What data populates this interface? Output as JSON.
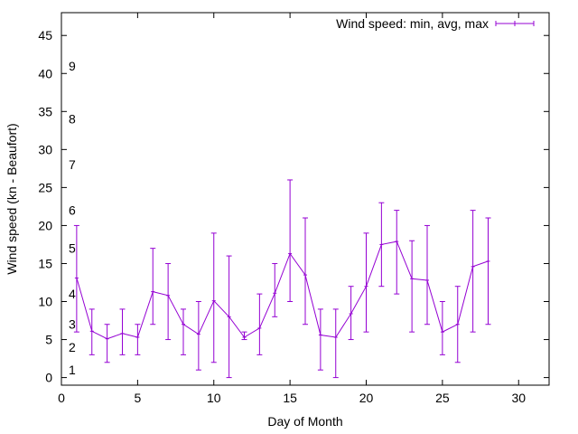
{
  "chart_data": {
    "type": "line",
    "title": "",
    "xlabel": "Day of Month",
    "ylabel": "Wind speed (kn - Beaufort)",
    "xlim": [
      0,
      32
    ],
    "ylim": [
      -1,
      48
    ],
    "xticks": [
      0,
      5,
      10,
      15,
      20,
      25,
      30
    ],
    "yticks": [
      0,
      5,
      10,
      15,
      20,
      25,
      30,
      35,
      40,
      45
    ],
    "grid": false,
    "legend_position": "top-right",
    "series": [
      {
        "name": "Wind speed: min, avg, max",
        "color": "#9400d3",
        "points": [
          {
            "x": 1,
            "min": 6,
            "avg": 13.1,
            "max": 20
          },
          {
            "x": 2,
            "min": 3,
            "avg": 6.1,
            "max": 9
          },
          {
            "x": 3,
            "min": 2,
            "avg": 5.1,
            "max": 7
          },
          {
            "x": 4,
            "min": 3,
            "avg": 5.8,
            "max": 9
          },
          {
            "x": 5,
            "min": 3,
            "avg": 5.3,
            "max": 7
          },
          {
            "x": 6,
            "min": 7,
            "avg": 11.3,
            "max": 17
          },
          {
            "x": 7,
            "min": 5,
            "avg": 10.8,
            "max": 15
          },
          {
            "x": 8,
            "min": 3,
            "avg": 7.0,
            "max": 9
          },
          {
            "x": 9,
            "min": 1,
            "avg": 5.7,
            "max": 10
          },
          {
            "x": 10,
            "min": 2,
            "avg": 10.1,
            "max": 19
          },
          {
            "x": 11,
            "min": 0,
            "avg": 8.0,
            "max": 16
          },
          {
            "x": 12,
            "min": 5,
            "avg": 5.3,
            "max": 6
          },
          {
            "x": 13,
            "min": 3,
            "avg": 6.5,
            "max": 11
          },
          {
            "x": 14,
            "min": 8,
            "avg": 11.1,
            "max": 15
          },
          {
            "x": 15,
            "min": 10,
            "avg": 16.3,
            "max": 26
          },
          {
            "x": 16,
            "min": 7,
            "avg": 13.5,
            "max": 21
          },
          {
            "x": 17,
            "min": 1,
            "avg": 5.6,
            "max": 9
          },
          {
            "x": 18,
            "min": 0,
            "avg": 5.3,
            "max": 9
          },
          {
            "x": 19,
            "min": 5,
            "avg": 8.4,
            "max": 12
          },
          {
            "x": 20,
            "min": 6,
            "avg": 12.0,
            "max": 19
          },
          {
            "x": 21,
            "min": 12,
            "avg": 17.5,
            "max": 23
          },
          {
            "x": 22,
            "min": 11,
            "avg": 17.9,
            "max": 22
          },
          {
            "x": 23,
            "min": 6,
            "avg": 13.0,
            "max": 18
          },
          {
            "x": 24,
            "min": 7,
            "avg": 12.8,
            "max": 20
          },
          {
            "x": 25,
            "min": 3,
            "avg": 6.0,
            "max": 10
          },
          {
            "x": 26,
            "min": 2,
            "avg": 7.0,
            "max": 12
          },
          {
            "x": 27,
            "min": 6,
            "avg": 14.6,
            "max": 22
          },
          {
            "x": 28,
            "min": 7,
            "avg": 15.3,
            "max": 21
          }
        ]
      }
    ],
    "beaufort_labels": [
      {
        "label": "1",
        "y": 1
      },
      {
        "label": "2",
        "y": 4
      },
      {
        "label": "3",
        "y": 7
      },
      {
        "label": "4",
        "y": 11
      },
      {
        "label": "5",
        "y": 17
      },
      {
        "label": "6",
        "y": 22
      },
      {
        "label": "7",
        "y": 28
      },
      {
        "label": "8",
        "y": 34
      },
      {
        "label": "9",
        "y": 41
      }
    ]
  }
}
